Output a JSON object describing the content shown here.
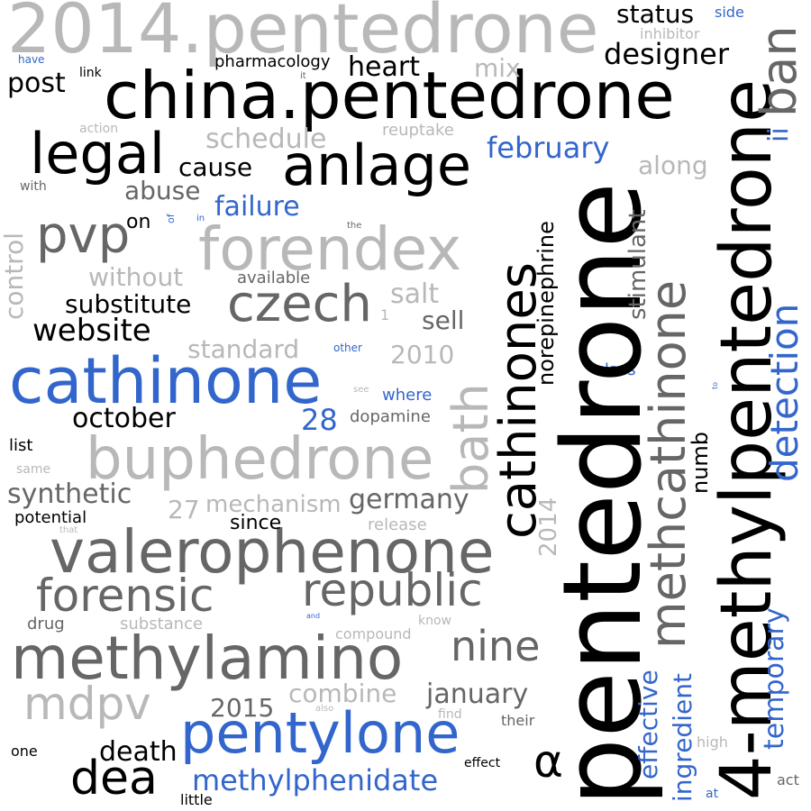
{
  "palette": {
    "black": "#000000",
    "dark": "#666666",
    "light": "#b8b8b8",
    "blue": "#3366cc"
  },
  "words": [
    {
      "text": "2014.pentedrone",
      "color": "#b8b8b8"
    },
    {
      "text": "china.pentedrone",
      "color": "#000000"
    },
    {
      "text": "pentedrone",
      "color": "#000000"
    },
    {
      "text": "4-methylpentedrone",
      "color": "#000000"
    },
    {
      "text": "cathinone",
      "color": "#3366cc"
    },
    {
      "text": "valerophenone",
      "color": "#666666"
    },
    {
      "text": "methylamino",
      "color": "#666666"
    },
    {
      "text": "buphedrone",
      "color": "#b8b8b8"
    },
    {
      "text": "forendex",
      "color": "#b8b8b8"
    },
    {
      "text": "anlage",
      "color": "#000000"
    },
    {
      "text": "legal",
      "color": "#000000"
    },
    {
      "text": "methcathinone",
      "color": "#666666"
    },
    {
      "text": "cathinones",
      "color": "#000000"
    },
    {
      "text": "pentylone",
      "color": "#3366cc"
    },
    {
      "text": "forensic",
      "color": "#666666"
    },
    {
      "text": "republic",
      "color": "#666666"
    },
    {
      "text": "czech",
      "color": "#666666"
    },
    {
      "text": "pvp",
      "color": "#666666"
    },
    {
      "text": "mdpv",
      "color": "#b8b8b8"
    },
    {
      "text": "dea",
      "color": "#000000"
    },
    {
      "text": "nine",
      "color": "#666666"
    },
    {
      "text": "detection",
      "color": "#3366cc"
    },
    {
      "text": "bath",
      "color": "#b8b8b8"
    },
    {
      "text": "ban",
      "color": "#666666"
    },
    {
      "text": "α",
      "color": "#000000"
    },
    {
      "text": "february",
      "color": "#3366cc"
    },
    {
      "text": "methylphenidate",
      "color": "#3366cc"
    },
    {
      "text": "temporary",
      "color": "#3366cc"
    },
    {
      "text": "website",
      "color": "#000000"
    },
    {
      "text": "designer",
      "color": "#000000"
    },
    {
      "text": "germany",
      "color": "#666666"
    },
    {
      "text": "january",
      "color": "#666666"
    },
    {
      "text": "death",
      "color": "#000000"
    },
    {
      "text": "october",
      "color": "#000000"
    },
    {
      "text": "schedule",
      "color": "#b8b8b8"
    },
    {
      "text": "combine",
      "color": "#b8b8b8"
    },
    {
      "text": "synthetic",
      "color": "#666666"
    },
    {
      "text": "substitute",
      "color": "#000000"
    },
    {
      "text": "heart",
      "color": "#000000"
    },
    {
      "text": "post",
      "color": "#000000"
    },
    {
      "text": "status",
      "color": "#000000"
    },
    {
      "text": "28",
      "color": "#3366cc"
    },
    {
      "text": "failure",
      "color": "#3366cc"
    },
    {
      "text": "cause",
      "color": "#000000"
    },
    {
      "text": "abuse",
      "color": "#666666"
    },
    {
      "text": "salt",
      "color": "#b8b8b8"
    },
    {
      "text": "sell",
      "color": "#666666"
    },
    {
      "text": "mix",
      "color": "#b8b8b8"
    },
    {
      "text": "along",
      "color": "#b8b8b8"
    },
    {
      "text": "2010",
      "color": "#b8b8b8"
    },
    {
      "text": "2015",
      "color": "#666666"
    },
    {
      "text": "standard",
      "color": "#b8b8b8"
    },
    {
      "text": "mechanism",
      "color": "#b8b8b8"
    },
    {
      "text": "27",
      "color": "#b8b8b8"
    },
    {
      "text": "without",
      "color": "#b8b8b8"
    },
    {
      "text": "control",
      "color": "#b8b8b8"
    },
    {
      "text": "stimulant",
      "color": "#666666"
    },
    {
      "text": "norepinephrine",
      "color": "#000000"
    },
    {
      "text": "2014",
      "color": "#b8b8b8"
    },
    {
      "text": "effective",
      "color": "#3366cc"
    },
    {
      "text": "ingredient",
      "color": "#3366cc"
    },
    {
      "text": "numb",
      "color": "#000000"
    },
    {
      "text": "ii",
      "color": "#3366cc"
    },
    {
      "text": "since",
      "color": "#000000"
    },
    {
      "text": "on",
      "color": "#000000"
    },
    {
      "text": "dopamine",
      "color": "#666666"
    },
    {
      "text": "pharmacology",
      "color": "#000000"
    },
    {
      "text": "inhibitor",
      "color": "#b8b8b8"
    },
    {
      "text": "reuptake",
      "color": "#b8b8b8"
    },
    {
      "text": "available",
      "color": "#666666"
    },
    {
      "text": "release",
      "color": "#b8b8b8"
    },
    {
      "text": "substance",
      "color": "#b8b8b8"
    },
    {
      "text": "compound",
      "color": "#b8b8b8"
    },
    {
      "text": "potential",
      "color": "#000000"
    },
    {
      "text": "list",
      "color": "#000000"
    },
    {
      "text": "drug",
      "color": "#666666"
    },
    {
      "text": "where",
      "color": "#3366cc"
    },
    {
      "text": "class",
      "color": "#3366cc"
    },
    {
      "text": "their",
      "color": "#666666"
    },
    {
      "text": "find",
      "color": "#b8b8b8"
    },
    {
      "text": "know",
      "color": "#b8b8b8"
    },
    {
      "text": "effect",
      "color": "#000000"
    },
    {
      "text": "little",
      "color": "#000000"
    },
    {
      "text": "one",
      "color": "#000000"
    },
    {
      "text": "high",
      "color": "#b8b8b8"
    },
    {
      "text": "act",
      "color": "#666666"
    },
    {
      "text": "at",
      "color": "#3366cc"
    },
    {
      "text": "side",
      "color": "#3366cc"
    },
    {
      "text": "link",
      "color": "#000000"
    },
    {
      "text": "have",
      "color": "#3366cc"
    },
    {
      "text": "action",
      "color": "#b8b8b8"
    },
    {
      "text": "with",
      "color": "#666666"
    },
    {
      "text": "same",
      "color": "#b8b8b8"
    },
    {
      "text": "other",
      "color": "#3366cc"
    },
    {
      "text": "see",
      "color": "#b8b8b8"
    },
    {
      "text": "1",
      "color": "#b8b8b8"
    },
    {
      "text": "the",
      "color": "#666666"
    },
    {
      "text": "in",
      "color": "#3366cc"
    },
    {
      "text": "of",
      "color": "#3366cc"
    },
    {
      "text": "it",
      "color": "#666666"
    },
    {
      "text": "to",
      "color": "#3366cc"
    },
    {
      "text": "and",
      "color": "#3366cc"
    },
    {
      "text": "also",
      "color": "#b8b8b8"
    },
    {
      "text": "that",
      "color": "#b8b8b8"
    }
  ]
}
